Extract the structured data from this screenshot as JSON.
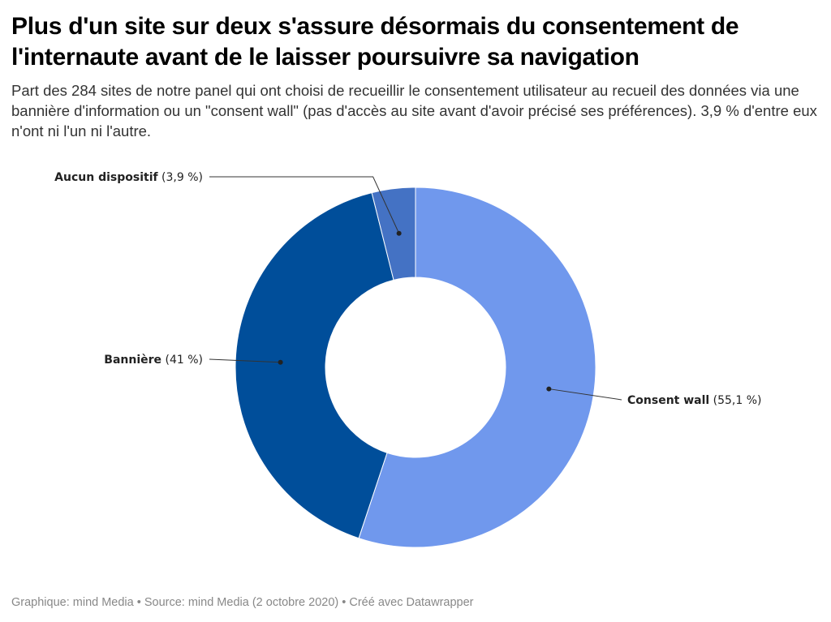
{
  "title": "Plus d'un site sur deux s'assure désormais du consentement de l'internaute avant de le laisser poursuivre sa navigation",
  "subtitle": "Part des 284 sites de notre panel qui ont choisi de recueillir le consentement utilisateur au recueil des données via une bannière d'information ou un \"consent wall\" (pas d'accès au site avant d'avoir précisé ses préférences). 3,9 % d'entre eux n'ont ni l'un ni l'autre.",
  "footer": "Graphique: mind Media • Source: mind Media (2 octobre 2020) • Créé avec Datawrapper",
  "chart_data": {
    "type": "pie",
    "subtype": "donut",
    "slices": [
      {
        "name": "Consent wall",
        "value": 55.1,
        "value_label": "(55,1 %)",
        "color": "#7098ed",
        "label_side": "right"
      },
      {
        "name": "Bannière",
        "value": 41,
        "value_label": "(41 %)",
        "color": "#004e9a",
        "label_side": "left"
      },
      {
        "name": "Aucun dispositif",
        "value": 3.9,
        "value_label": "(3,9 %)",
        "color": "#4472c4",
        "label_side": "left"
      }
    ],
    "slice_border_color": "#ffffff",
    "start": "top",
    "direction": "clockwise"
  }
}
